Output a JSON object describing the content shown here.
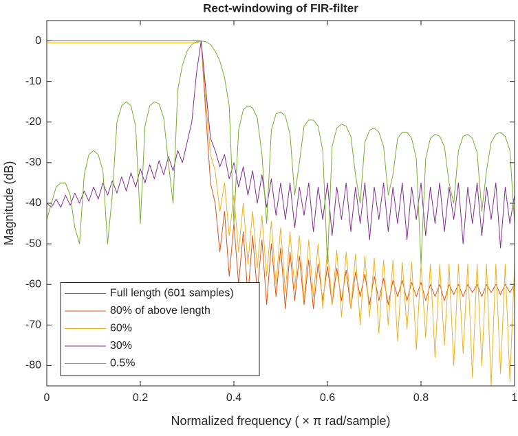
{
  "chart_data": {
    "type": "line",
    "title": "Rect-windowing of FIR-filter",
    "xlabel": "Normalized frequency ( × π rad/sample)",
    "ylabel": "Magnitude (dB)",
    "x": [
      0,
      0.01,
      0.02,
      0.03,
      0.04,
      0.05,
      0.06,
      0.07,
      0.08,
      0.09,
      0.1,
      0.11,
      0.12,
      0.13,
      0.14,
      0.15,
      0.16,
      0.17,
      0.18,
      0.19,
      0.2,
      0.21,
      0.22,
      0.23,
      0.24,
      0.25,
      0.26,
      0.27,
      0.28,
      0.29,
      0.3,
      0.31,
      0.32,
      0.33,
      0.34,
      0.35,
      0.36,
      0.37,
      0.38,
      0.39,
      0.4,
      0.41,
      0.42,
      0.43,
      0.44,
      0.45,
      0.46,
      0.47,
      0.48,
      0.49,
      0.5,
      0.51,
      0.52,
      0.53,
      0.54,
      0.55,
      0.56,
      0.57,
      0.58,
      0.59,
      0.6,
      0.61,
      0.62,
      0.63,
      0.64,
      0.65,
      0.66,
      0.67,
      0.68,
      0.69,
      0.7,
      0.71,
      0.72,
      0.73,
      0.74,
      0.75,
      0.76,
      0.77,
      0.78,
      0.79,
      0.8,
      0.81,
      0.82,
      0.83,
      0.84,
      0.85,
      0.86,
      0.87,
      0.88,
      0.89,
      0.9,
      0.91,
      0.92,
      0.93,
      0.94,
      0.95,
      0.96,
      0.97,
      0.98,
      0.99,
      1
    ],
    "series": [
      {
        "name": "Full length (601 samples)",
        "color": "#1f8f8a",
        "values": [
          0,
          0,
          0,
          0,
          0,
          0,
          0,
          0,
          0,
          0,
          0,
          0,
          0,
          0,
          0,
          0,
          0,
          0,
          0,
          0,
          0,
          0,
          0,
          0,
          0,
          0,
          0,
          0,
          0,
          0,
          0,
          0,
          0,
          0,
          null,
          null,
          null,
          null,
          null,
          null,
          null,
          null,
          null,
          null,
          null,
          null,
          null,
          null,
          null,
          null,
          null,
          null,
          null,
          null,
          null,
          null,
          null,
          null,
          null,
          null,
          null,
          null,
          null,
          null,
          null,
          null,
          null,
          null,
          null,
          null,
          null,
          null,
          null,
          null,
          null,
          null,
          null,
          null,
          null,
          null,
          null,
          null,
          null,
          null,
          null,
          null,
          null,
          null,
          null,
          null,
          null,
          null,
          null,
          null,
          null,
          null,
          null,
          null,
          null,
          null,
          null
        ]
      },
      {
        "name": "80% of above length",
        "color": "#d95319",
        "values": [
          -0.5,
          -0.5,
          -0.5,
          -0.5,
          -0.5,
          -0.5,
          -0.5,
          -0.5,
          -0.5,
          -0.5,
          -0.5,
          -0.5,
          -0.5,
          -0.5,
          -0.5,
          -0.5,
          -0.5,
          -0.5,
          -0.5,
          -0.5,
          -0.5,
          -0.5,
          -0.5,
          -0.5,
          -0.5,
          -0.5,
          -0.5,
          -0.5,
          -0.5,
          -0.5,
          -0.5,
          -0.5,
          -0.5,
          0,
          -18,
          -35,
          -40,
          -52,
          -42,
          -58,
          -45,
          -60,
          -47,
          -63,
          -48,
          -62,
          -49,
          -65,
          -50,
          -63,
          -51,
          -66,
          -52,
          -64,
          -53,
          -65,
          -54,
          -66,
          -55,
          -64,
          -55.5,
          -65,
          -56,
          -64,
          -56.5,
          -66,
          -57,
          -63,
          -57.5,
          -65,
          -58,
          -64,
          -58.5,
          -65,
          -59,
          -63,
          -59,
          -64,
          -59.5,
          -63,
          -59.5,
          -64,
          -60,
          -63,
          -60,
          -64,
          -60,
          -62.5,
          -60,
          -63,
          -60,
          -62,
          -60,
          -63,
          -60,
          -62,
          -60,
          -62.5,
          -60,
          -62,
          -60
        ]
      },
      {
        "name": "60%",
        "color": "#edb120",
        "values": [
          -0.5,
          -0.5,
          -0.5,
          -0.5,
          -0.5,
          -0.5,
          -0.5,
          -0.5,
          -0.5,
          -0.5,
          -0.5,
          -0.5,
          -0.5,
          -0.5,
          -0.5,
          -0.5,
          -0.5,
          -0.5,
          -0.5,
          -0.5,
          -0.5,
          -0.5,
          -0.5,
          -0.5,
          -0.5,
          -0.5,
          -0.5,
          -0.5,
          -0.5,
          -0.5,
          -0.5,
          -0.5,
          -0.5,
          0,
          -15,
          -28,
          -32,
          -42,
          -35,
          -48,
          -38,
          -52,
          -40,
          -55,
          -42,
          -56,
          -43,
          -58,
          -44.5,
          -60,
          -46,
          -62,
          -47,
          -61,
          -48,
          -64,
          -49,
          -63,
          -50,
          -66,
          -51,
          -65,
          -51.5,
          -68,
          -52,
          -66,
          -52.5,
          -70,
          -53,
          -68,
          -53.5,
          -72,
          -54,
          -70,
          -54,
          -74,
          -54.5,
          -71,
          -54.5,
          -76,
          -55,
          -73,
          -55,
          -78,
          -55,
          -75,
          -55,
          -80,
          -55,
          -77,
          -55,
          -83,
          -55,
          -80,
          -55,
          -85,
          -55,
          -82,
          -55,
          -84,
          -55
        ]
      },
      {
        "name": "30%",
        "color": "#7e2f8e",
        "values": [
          -40,
          -41,
          -39,
          -41,
          -38,
          -40.5,
          -37.5,
          -40,
          -37,
          -39.5,
          -36,
          -39,
          -35,
          -38,
          -34.5,
          -37.5,
          -33.5,
          -37,
          -32.5,
          -36,
          -31.5,
          -35,
          -30.5,
          -34,
          -29.5,
          -33,
          -28.5,
          -32,
          -27,
          -30,
          -25,
          -20,
          -8,
          0,
          -12,
          -24,
          -27,
          -31,
          -28,
          -34,
          -30,
          -36,
          -31,
          -38,
          -32,
          -40,
          -33,
          -41,
          -34,
          -43,
          -35,
          -44,
          -35,
          -46,
          -36,
          -43,
          -35,
          -47,
          -36,
          -44,
          -35,
          -48,
          -36,
          -44,
          -35,
          -47,
          -36,
          -45,
          -35,
          -49,
          -36,
          -44,
          -35,
          -47,
          -36,
          -45,
          -35,
          -49,
          -36,
          -44,
          -35,
          -48,
          -36,
          -45,
          -35,
          -47,
          -36,
          -44,
          -35,
          -50,
          -36,
          -45,
          -35,
          -48,
          -36,
          -44,
          -35,
          -51,
          -36,
          -45,
          -38
        ]
      },
      {
        "name": "0.5%",
        "color": "#77ac30",
        "values": [
          -44,
          -40,
          -36,
          -35,
          -35,
          -38,
          -46,
          -50,
          -33,
          -28,
          -27,
          -28,
          -32,
          -50,
          -38,
          -20,
          -16,
          -15,
          -16,
          -21,
          -45,
          -21,
          -16,
          -15,
          -15.5,
          -19,
          -30,
          -40,
          -12,
          -6,
          -2.5,
          -0.9,
          -0.2,
          0,
          -0.2,
          -0.9,
          -2.5,
          -5,
          -9,
          -16,
          -45,
          -22,
          -17,
          -16,
          -16.5,
          -19,
          -28,
          -45,
          -22,
          -18,
          -17.5,
          -18.5,
          -23,
          -38,
          -30,
          -21,
          -19.5,
          -19.5,
          -21,
          -27,
          -55,
          -26,
          -21.5,
          -20.5,
          -21,
          -23.5,
          -33,
          -40,
          -25,
          -22,
          -21.5,
          -22.5,
          -26,
          -38,
          -33,
          -24,
          -22.5,
          -22.5,
          -24,
          -29,
          -55,
          -29,
          -24,
          -23,
          -23.5,
          -26,
          -35,
          -40,
          -27,
          -23.5,
          -23,
          -24,
          -27.5,
          -42,
          -32,
          -25,
          -23,
          -22.5,
          -23.5,
          -27,
          -45
        ]
      }
    ],
    "xlim": [
      0,
      1
    ],
    "ylim": [
      -85,
      5
    ],
    "xticks": [
      0,
      0.2,
      0.4,
      0.6,
      0.8,
      1
    ],
    "yticks": [
      0,
      -10,
      -20,
      -30,
      -40,
      -50,
      -60,
      -70,
      -80
    ],
    "grid": false,
    "legend": "lower left"
  }
}
